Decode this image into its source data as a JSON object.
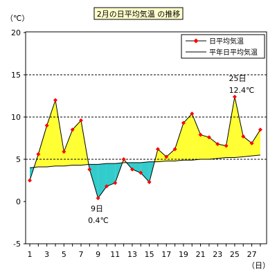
{
  "chart_data": {
    "type": "line",
    "title": "2月の日平均気温 の推移",
    "y_unit_label": "（℃）",
    "x_unit_label": "（日）",
    "ylim": [
      -5,
      20
    ],
    "y_ticks": [
      -5,
      0,
      5,
      10,
      15,
      20
    ],
    "x_ticks": [
      1,
      3,
      5,
      7,
      9,
      11,
      13,
      15,
      17,
      19,
      21,
      23,
      25,
      27
    ],
    "grid": "dashed horizontal at 5, 10, 15",
    "legend_position": "top-right",
    "colors": {
      "daily_line": "#000000",
      "daily_marker": "#ff0000",
      "normal_line": "#000000",
      "above_fill": "#ffff33",
      "below_fill": "#33cccc"
    },
    "series": [
      {
        "name": "日平均気温",
        "marker": "diamond",
        "x": [
          1,
          2,
          3,
          4,
          5,
          6,
          7,
          8,
          9,
          10,
          11,
          12,
          13,
          14,
          15,
          16,
          17,
          18,
          19,
          20,
          21,
          22,
          23,
          24,
          25,
          26,
          27,
          28
        ],
        "values": [
          2.5,
          5.6,
          9.0,
          12.0,
          5.9,
          8.5,
          9.6,
          3.8,
          0.4,
          1.8,
          2.2,
          5.0,
          3.8,
          3.4,
          2.3,
          6.2,
          5.3,
          6.2,
          9.3,
          10.4,
          7.9,
          7.6,
          6.8,
          6.6,
          12.4,
          7.7,
          6.9,
          8.5
        ]
      },
      {
        "name": "平年日平均気温",
        "x": [
          1,
          2,
          3,
          4,
          5,
          6,
          7,
          8,
          9,
          10,
          11,
          12,
          13,
          14,
          15,
          16,
          17,
          18,
          19,
          20,
          21,
          22,
          23,
          24,
          25,
          26,
          27,
          28
        ],
        "values": [
          4.0,
          4.1,
          4.1,
          4.2,
          4.2,
          4.3,
          4.3,
          4.4,
          4.4,
          4.5,
          4.5,
          4.6,
          4.6,
          4.6,
          4.7,
          4.7,
          4.8,
          4.8,
          4.9,
          4.9,
          5.0,
          5.0,
          5.1,
          5.2,
          5.2,
          5.3,
          5.4,
          5.5
        ]
      }
    ],
    "annotations": [
      {
        "day_label": "25日",
        "temp_label": "12.4℃"
      },
      {
        "day_label": "9日",
        "temp_label": "0.4℃"
      }
    ]
  }
}
